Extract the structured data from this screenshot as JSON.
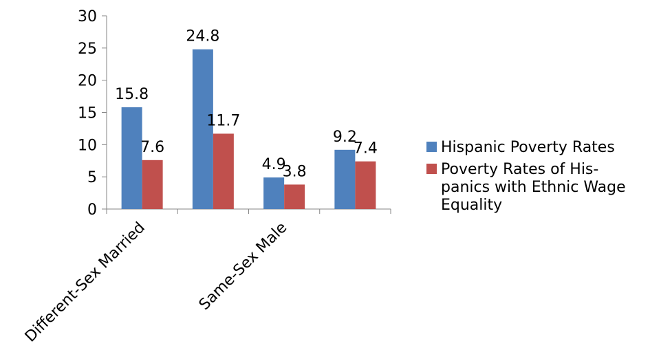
{
  "chart_data": {
    "type": "bar",
    "categories": [
      "Different-Sex Married",
      "",
      "Same-Sex Male",
      ""
    ],
    "series": [
      {
        "name": "Hispanic Poverty Rates",
        "values": [
          15.8,
          24.8,
          4.9,
          9.2
        ],
        "color": "#4F81BD"
      },
      {
        "name": "Poverty Rates of His-panics with Ethnic Wage Equality",
        "values": [
          7.6,
          11.7,
          3.8,
          7.4
        ],
        "color": "#C0504D"
      }
    ],
    "value_labels": [
      [
        "15.8",
        "24.8",
        "4.9",
        "9.2"
      ],
      [
        "7.6",
        "11.7",
        "3.8",
        "7.4"
      ]
    ],
    "legend_lines": [
      [
        "Hispanic Poverty Rates"
      ],
      [
        "Poverty Rates of His-",
        "panics with Ethnic Wage",
        "Equality"
      ]
    ],
    "y_ticks": [
      "0",
      "5",
      "10",
      "15",
      "20",
      "25",
      "30"
    ],
    "ylim": [
      0,
      30
    ],
    "grid": false,
    "legend_position": "right",
    "title": "",
    "xlabel": "",
    "ylabel": ""
  }
}
